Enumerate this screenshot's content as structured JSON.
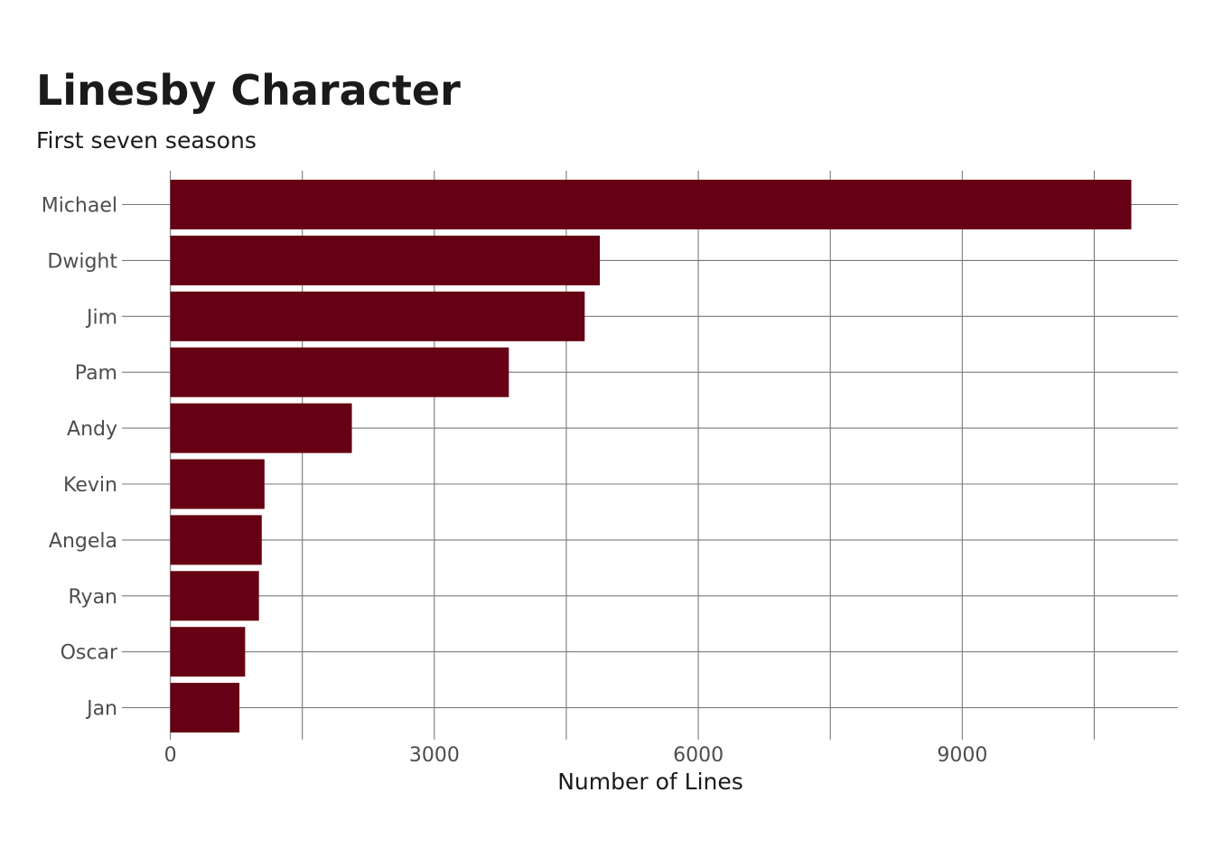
{
  "chart_data": {
    "type": "bar",
    "orientation": "horizontal",
    "title": "Linesby Character",
    "subtitle": "First seven seasons",
    "xlabel": "Number of Lines",
    "ylabel": "",
    "categories": [
      "Michael",
      "Dwight",
      "Jim",
      "Pam",
      "Andy",
      "Kevin",
      "Angela",
      "Ryan",
      "Oscar",
      "Jan"
    ],
    "values": [
      10921,
      4881,
      4709,
      3847,
      2063,
      1070,
      1039,
      1007,
      850,
      785
    ],
    "xlim": [
      -550,
      11450
    ],
    "xticks": [
      0,
      3000,
      6000,
      9000
    ],
    "xtick_labels": [
      "0",
      "3000",
      "6000",
      "9000"
    ],
    "minor_gridlines": [
      1500,
      4500,
      7500,
      10500
    ],
    "grid": true,
    "legend": "none",
    "bar_color": "#660014"
  }
}
